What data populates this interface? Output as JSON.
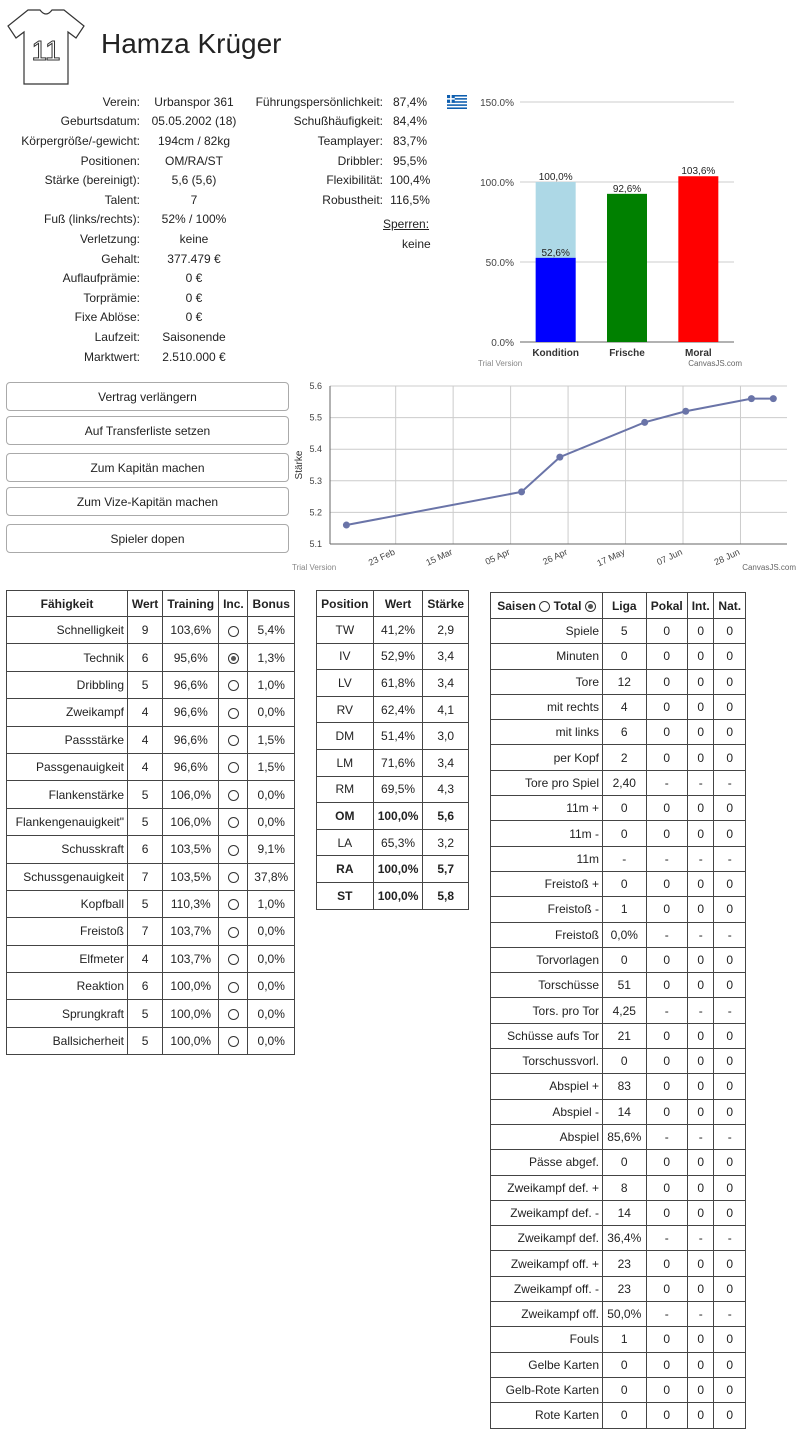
{
  "player": {
    "number": "11",
    "name": "Hamza Krüger"
  },
  "info_left": [
    {
      "label": "Verein:",
      "value": "Urbanspor 361"
    },
    {
      "label": "Geburtsdatum:",
      "value": "05.05.2002 (18)"
    },
    {
      "label": "Körpergröße/-gewicht:",
      "value": "194cm / 82kg"
    },
    {
      "label": "Positionen:",
      "value": "OM/RA/ST"
    },
    {
      "label": "Stärke (bereinigt):",
      "value": "5,6 (5,6)"
    },
    {
      "label": "Talent:",
      "value": "7"
    },
    {
      "label": "Fuß (links/rechts):",
      "value": "52% / 100%"
    },
    {
      "label": "Verletzung:",
      "value": "keine"
    },
    {
      "label": "Gehalt:",
      "value": "377.479 €"
    },
    {
      "label": "Auflaufprämie:",
      "value": "0 €"
    },
    {
      "label": "Torprämie:",
      "value": "0 €"
    },
    {
      "label": "Fixe Ablöse:",
      "value": "0 €"
    },
    {
      "label": "Laufzeit:",
      "value": "Saisonende"
    },
    {
      "label": "Marktwert:",
      "value": "2.510.000 €"
    }
  ],
  "info_mid": [
    {
      "label": "Führungspersönlichkeit:",
      "value": "87,4%"
    },
    {
      "label": "Schußhäufigkeit:",
      "value": "84,4%"
    },
    {
      "label": "Teamplayer:",
      "value": "83,7%"
    },
    {
      "label": "Dribbler:",
      "value": "95,5%"
    },
    {
      "label": "Flexibilität:",
      "value": "100,4%"
    },
    {
      "label": "Robustheit:",
      "value": "116,5%"
    }
  ],
  "sperren": {
    "label": "Sperren:",
    "value": "keine"
  },
  "flag_icon": "greece-flag-icon",
  "colors": {
    "kondition_full": "#add8e6",
    "kondition": "#0000ff",
    "frische": "#008000",
    "moral": "#ff0000",
    "line": "#6a74a8",
    "grid": "#cccccc"
  },
  "chart_data": [
    {
      "type": "bar",
      "categories": [
        "Kondition",
        "Frische",
        "Moral"
      ],
      "series": [
        {
          "values": [
            100.0,
            null,
            null
          ]
        },
        {
          "values": [
            52.6,
            92.6,
            103.6
          ]
        }
      ],
      "data_labels": [
        "100,0%",
        "52,6%",
        "92,6%",
        "103,6%"
      ],
      "y_ticks": [
        "0.0%",
        "50.0%",
        "100.0%",
        "150.0%"
      ],
      "ylim": [
        0,
        150
      ],
      "watermark_left": "Trial Version",
      "watermark_right": "CanvasJS.com"
    },
    {
      "type": "line",
      "ylabel": "Stärke",
      "x": [
        "2020-02-05",
        "2020-04-09",
        "2020-04-23",
        "2020-05-24",
        "2020-06-08",
        "2020-07-02",
        "2020-07-10"
      ],
      "values": [
        5.16,
        5.265,
        5.375,
        5.485,
        5.52,
        5.56,
        5.56
      ],
      "x_ticks": [
        "23 Feb",
        "15 Mar",
        "05 Apr",
        "26 Apr",
        "17 May",
        "07 Jun",
        "28 Jun"
      ],
      "y_ticks": [
        "5.1",
        "5.2",
        "5.3",
        "5.4",
        "5.5",
        "5.6"
      ],
      "ylim": [
        5.1,
        5.6
      ],
      "watermark_left": "Trial Version",
      "watermark_right": "CanvasJS.com"
    }
  ],
  "buttons": [
    "Vertrag verlängern",
    "Auf Transferliste setzen",
    "Zum Kapitän machen",
    "Zum Vize-Kapitän machen",
    "Spieler dopen"
  ],
  "skills": {
    "headers": [
      "Fähigkeit",
      "Wert",
      "Training",
      "Inc.",
      "Bonus"
    ],
    "rows": [
      {
        "name": "Schnelligkeit",
        "wert": "9",
        "training": "103,6%",
        "inc": false,
        "bonus": "5,4%"
      },
      {
        "name": "Technik",
        "wert": "6",
        "training": "95,6%",
        "inc": true,
        "bonus": "1,3%"
      },
      {
        "name": "Dribbling",
        "wert": "5",
        "training": "96,6%",
        "inc": false,
        "bonus": "1,0%"
      },
      {
        "name": "Zweikampf",
        "wert": "4",
        "training": "96,6%",
        "inc": false,
        "bonus": "0,0%"
      },
      {
        "name": "Passstärke",
        "wert": "4",
        "training": "96,6%",
        "inc": false,
        "bonus": "1,5%"
      },
      {
        "name": "Passgenauigkeit",
        "wert": "4",
        "training": "96,6%",
        "inc": false,
        "bonus": "1,5%"
      },
      {
        "name": "Flankenstärke",
        "wert": "5",
        "training": "106,0%",
        "inc": false,
        "bonus": "0,0%"
      },
      {
        "name": "Flankengenauigkeit\"",
        "wert": "5",
        "training": "106,0%",
        "inc": false,
        "bonus": "0,0%"
      },
      {
        "name": "Schusskraft",
        "wert": "6",
        "training": "103,5%",
        "inc": false,
        "bonus": "9,1%"
      },
      {
        "name": "Schussgenauigkeit",
        "wert": "7",
        "training": "103,5%",
        "inc": false,
        "bonus": "37,8%"
      },
      {
        "name": "Kopfball",
        "wert": "5",
        "training": "110,3%",
        "inc": false,
        "bonus": "1,0%"
      },
      {
        "name": "Freistoß",
        "wert": "7",
        "training": "103,7%",
        "inc": false,
        "bonus": "0,0%"
      },
      {
        "name": "Elfmeter",
        "wert": "4",
        "training": "103,7%",
        "inc": false,
        "bonus": "0,0%"
      },
      {
        "name": "Reaktion",
        "wert": "6",
        "training": "100,0%",
        "inc": false,
        "bonus": "0,0%"
      },
      {
        "name": "Sprungkraft",
        "wert": "5",
        "training": "100,0%",
        "inc": false,
        "bonus": "0,0%"
      },
      {
        "name": "Ballsicherheit",
        "wert": "5",
        "training": "100,0%",
        "inc": false,
        "bonus": "0,0%"
      }
    ]
  },
  "positions": {
    "headers": [
      "Position",
      "Wert",
      "Stärke"
    ],
    "rows": [
      {
        "pos": "TW",
        "wert": "41,2%",
        "staerke": "2,9",
        "bold": false
      },
      {
        "pos": "IV",
        "wert": "52,9%",
        "staerke": "3,4",
        "bold": false
      },
      {
        "pos": "LV",
        "wert": "61,8%",
        "staerke": "3,4",
        "bold": false
      },
      {
        "pos": "RV",
        "wert": "62,4%",
        "staerke": "4,1",
        "bold": false
      },
      {
        "pos": "DM",
        "wert": "51,4%",
        "staerke": "3,0",
        "bold": false
      },
      {
        "pos": "LM",
        "wert": "71,6%",
        "staerke": "3,4",
        "bold": false
      },
      {
        "pos": "RM",
        "wert": "69,5%",
        "staerke": "4,3",
        "bold": false
      },
      {
        "pos": "OM",
        "wert": "100,0%",
        "staerke": "5,6",
        "bold": true
      },
      {
        "pos": "LA",
        "wert": "65,3%",
        "staerke": "3,2",
        "bold": false
      },
      {
        "pos": "RA",
        "wert": "100,0%",
        "staerke": "5,7",
        "bold": true
      },
      {
        "pos": "ST",
        "wert": "100,0%",
        "staerke": "5,8",
        "bold": true
      }
    ]
  },
  "stats": {
    "saison_label": "Saisen",
    "total_label": "Total",
    "headers": [
      "Liga",
      "Pokal",
      "Int.",
      "Nat."
    ],
    "rows": [
      {
        "name": "Spiele",
        "v": [
          "5",
          "0",
          "0",
          "0"
        ]
      },
      {
        "name": "Minuten",
        "v": [
          "0",
          "0",
          "0",
          "0"
        ]
      },
      {
        "name": "Tore",
        "v": [
          "12",
          "0",
          "0",
          "0"
        ]
      },
      {
        "name": "mit rechts",
        "v": [
          "4",
          "0",
          "0",
          "0"
        ]
      },
      {
        "name": "mit links",
        "v": [
          "6",
          "0",
          "0",
          "0"
        ]
      },
      {
        "name": "per Kopf",
        "v": [
          "2",
          "0",
          "0",
          "0"
        ]
      },
      {
        "name": "Tore pro Spiel",
        "v": [
          "2,40",
          "-",
          "-",
          "-"
        ]
      },
      {
        "name": "11m +",
        "v": [
          "0",
          "0",
          "0",
          "0"
        ]
      },
      {
        "name": "11m -",
        "v": [
          "0",
          "0",
          "0",
          "0"
        ]
      },
      {
        "name": "11m",
        "v": [
          "-",
          "-",
          "-",
          "-"
        ]
      },
      {
        "name": "Freistoß +",
        "v": [
          "0",
          "0",
          "0",
          "0"
        ]
      },
      {
        "name": "Freistoß -",
        "v": [
          "1",
          "0",
          "0",
          "0"
        ]
      },
      {
        "name": "Freistoß",
        "v": [
          "0,0%",
          "-",
          "-",
          "-"
        ]
      },
      {
        "name": "Torvorlagen",
        "v": [
          "0",
          "0",
          "0",
          "0"
        ]
      },
      {
        "name": "Torschüsse",
        "v": [
          "51",
          "0",
          "0",
          "0"
        ]
      },
      {
        "name": "Tors. pro Tor",
        "v": [
          "4,25",
          "-",
          "-",
          "-"
        ]
      },
      {
        "name": "Schüsse aufs Tor",
        "v": [
          "21",
          "0",
          "0",
          "0"
        ]
      },
      {
        "name": "Torschussvorl.",
        "v": [
          "0",
          "0",
          "0",
          "0"
        ]
      },
      {
        "name": "Abspiel +",
        "v": [
          "83",
          "0",
          "0",
          "0"
        ]
      },
      {
        "name": "Abspiel -",
        "v": [
          "14",
          "0",
          "0",
          "0"
        ]
      },
      {
        "name": "Abspiel",
        "v": [
          "85,6%",
          "-",
          "-",
          "-"
        ]
      },
      {
        "name": "Pässe abgef.",
        "v": [
          "0",
          "0",
          "0",
          "0"
        ]
      },
      {
        "name": "Zweikampf def. +",
        "v": [
          "8",
          "0",
          "0",
          "0"
        ]
      },
      {
        "name": "Zweikampf def. -",
        "v": [
          "14",
          "0",
          "0",
          "0"
        ]
      },
      {
        "name": "Zweikampf def.",
        "v": [
          "36,4%",
          "-",
          "-",
          "-"
        ]
      },
      {
        "name": "Zweikampf off. +",
        "v": [
          "23",
          "0",
          "0",
          "0"
        ]
      },
      {
        "name": "Zweikampf off. -",
        "v": [
          "23",
          "0",
          "0",
          "0"
        ]
      },
      {
        "name": "Zweikampf off.",
        "v": [
          "50,0%",
          "-",
          "-",
          "-"
        ]
      },
      {
        "name": "Fouls",
        "v": [
          "1",
          "0",
          "0",
          "0"
        ]
      },
      {
        "name": "Gelbe Karten",
        "v": [
          "0",
          "0",
          "0",
          "0"
        ]
      },
      {
        "name": "Gelb-Rote Karten",
        "v": [
          "0",
          "0",
          "0",
          "0"
        ]
      },
      {
        "name": "Rote Karten",
        "v": [
          "0",
          "0",
          "0",
          "0"
        ]
      }
    ]
  }
}
